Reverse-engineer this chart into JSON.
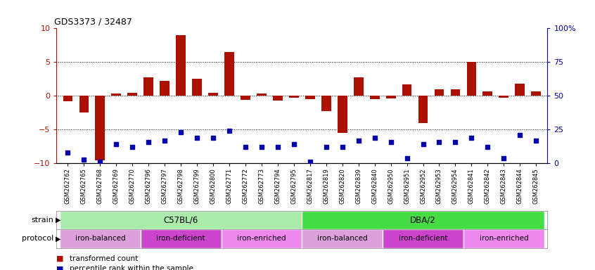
{
  "title": "GDS3373 / 32487",
  "samples": [
    "GSM262762",
    "GSM262765",
    "GSM262768",
    "GSM262769",
    "GSM262770",
    "GSM262796",
    "GSM262797",
    "GSM262798",
    "GSM262799",
    "GSM262800",
    "GSM262771",
    "GSM262772",
    "GSM262773",
    "GSM262794",
    "GSM262795",
    "GSM262817",
    "GSM262819",
    "GSM262820",
    "GSM262839",
    "GSM262840",
    "GSM262950",
    "GSM262951",
    "GSM262952",
    "GSM262953",
    "GSM262954",
    "GSM262841",
    "GSM262842",
    "GSM262843",
    "GSM262844",
    "GSM262845"
  ],
  "bar_values": [
    -0.8,
    -2.5,
    -9.5,
    0.3,
    0.5,
    2.7,
    2.2,
    9.0,
    2.5,
    0.4,
    6.5,
    -0.6,
    0.3,
    -0.7,
    -0.3,
    -0.5,
    -2.3,
    -5.5,
    2.7,
    -0.5,
    -0.4,
    1.7,
    -4.0,
    1.0,
    1.0,
    5.0,
    0.7,
    -0.3,
    1.8,
    0.7
  ],
  "dot_values_pct": [
    8,
    3,
    1,
    14,
    12,
    16,
    17,
    23,
    19,
    19,
    24,
    12,
    12,
    12,
    14,
    1,
    12,
    12,
    17,
    19,
    16,
    4,
    14,
    16,
    16,
    19,
    12,
    4,
    21,
    17
  ],
  "strain_groups": [
    {
      "label": "C57BL/6",
      "start": 0,
      "end": 15,
      "color": "#aaeaaa"
    },
    {
      "label": "DBA/2",
      "start": 15,
      "end": 30,
      "color": "#44dd44"
    }
  ],
  "protocol_groups": [
    {
      "label": "iron-balanced",
      "start": 0,
      "end": 5,
      "color": "#dda0dd"
    },
    {
      "label": "iron-deficient",
      "start": 5,
      "end": 10,
      "color": "#cc44cc"
    },
    {
      "label": "iron-enriched",
      "start": 10,
      "end": 15,
      "color": "#ee88ee"
    },
    {
      "label": "iron-balanced",
      "start": 15,
      "end": 20,
      "color": "#dda0dd"
    },
    {
      "label": "iron-deficient",
      "start": 20,
      "end": 25,
      "color": "#cc44cc"
    },
    {
      "label": "iron-enriched",
      "start": 25,
      "end": 30,
      "color": "#ee88ee"
    }
  ],
  "bar_color": "#aa1100",
  "dot_color": "#0000aa",
  "ylim_left": [
    -10,
    10
  ],
  "ylim_right": [
    0,
    100
  ],
  "yticks_left": [
    -10,
    -5,
    0,
    5,
    10
  ],
  "yticks_right": [
    0,
    25,
    50,
    75,
    100
  ],
  "ytick_labels_right": [
    "0",
    "25",
    "50",
    "75",
    "100%"
  ],
  "hlines": [
    5,
    0,
    -5
  ],
  "legend_items": [
    {
      "label": "transformed count",
      "color": "#aa1100"
    },
    {
      "label": "percentile rank within the sample",
      "color": "#0000aa"
    }
  ]
}
